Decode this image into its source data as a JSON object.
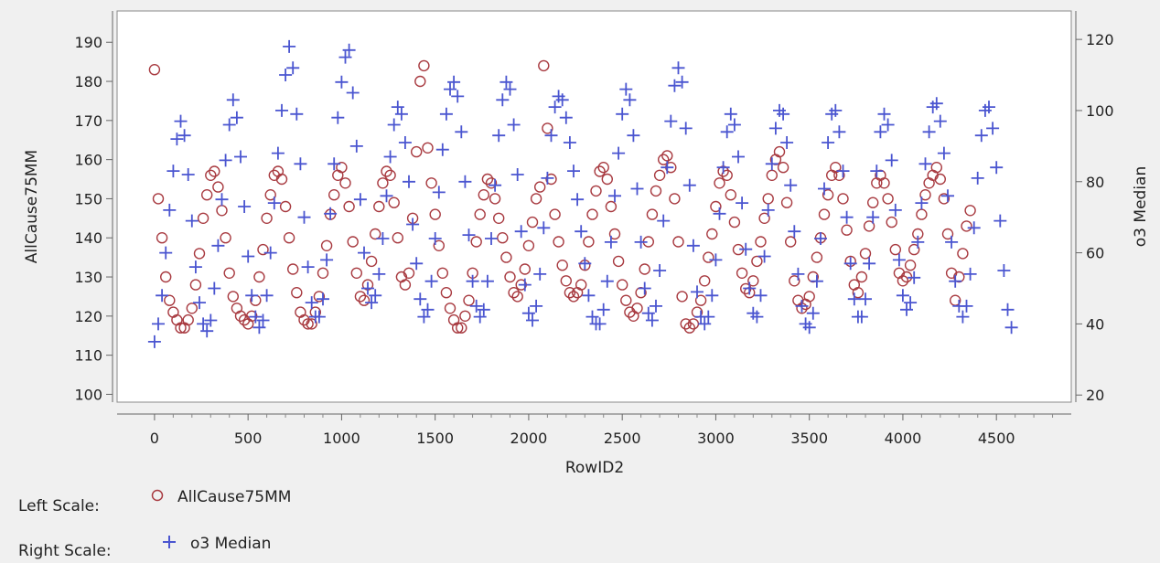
{
  "chart_data": {
    "type": "scatter",
    "xlabel": "RowID2",
    "ylabel_left": "AllCause75MM",
    "ylabel_right": "o3 Median",
    "x_range": [
      -200,
      4900
    ],
    "y_left_range": [
      98,
      198
    ],
    "y_right_range": [
      18,
      128
    ],
    "x_ticks": [
      0,
      500,
      1000,
      1500,
      2000,
      2500,
      3000,
      3500,
      4000,
      4500
    ],
    "y_left_ticks": [
      100,
      110,
      120,
      130,
      140,
      150,
      160,
      170,
      180,
      190
    ],
    "y_right_ticks": [
      20,
      40,
      60,
      80,
      100,
      120
    ],
    "grid": false,
    "series": [
      {
        "name": "AllCause75MM",
        "axis": "left",
        "marker": "circle-open",
        "color": "#a83a40",
        "x_start": 0,
        "x_step": 20,
        "values": [
          183,
          150,
          140,
          130,
          124,
          121,
          119,
          117,
          117,
          119,
          122,
          128,
          136,
          145,
          151,
          156,
          157,
          153,
          147,
          140,
          131,
          125,
          122,
          120,
          119,
          118,
          120,
          124,
          130,
          137,
          145,
          151,
          156,
          157,
          155,
          148,
          140,
          132,
          126,
          121,
          119,
          118,
          118,
          121,
          125,
          131,
          138,
          146,
          151,
          156,
          158,
          154,
          148,
          139,
          131,
          125,
          124,
          128,
          134,
          141,
          148,
          154,
          157,
          156,
          149,
          140,
          130,
          128,
          131,
          145,
          162,
          180,
          184,
          163,
          154,
          146,
          138,
          131,
          126,
          122,
          119,
          117,
          117,
          120,
          124,
          131,
          139,
          146,
          151,
          155,
          154,
          150,
          145,
          140,
          135,
          130,
          126,
          125,
          128,
          132,
          138,
          144,
          150,
          153,
          184,
          168,
          155,
          146,
          139,
          133,
          129,
          126,
          125,
          126,
          128,
          133,
          139,
          146,
          152,
          157,
          158,
          155,
          148,
          141,
          134,
          128,
          124,
          121,
          120,
          122,
          126,
          132,
          139,
          146,
          152,
          156,
          160,
          161,
          158,
          150,
          139,
          125,
          118,
          117,
          118,
          121,
          124,
          129,
          135,
          141,
          148,
          154,
          157,
          156,
          151,
          144,
          137,
          131,
          127,
          126,
          129,
          134,
          139,
          145,
          150,
          156,
          160,
          162,
          158,
          149,
          139,
          129,
          124,
          122,
          123,
          125,
          130,
          135,
          140,
          146,
          151,
          156,
          158,
          156,
          150,
          142,
          134,
          128,
          126,
          130,
          136,
          143,
          149,
          154,
          156,
          154,
          150,
          144,
          137,
          131,
          129,
          130,
          133,
          137,
          141,
          146,
          151,
          154,
          156,
          158,
          155,
          150,
          141,
          131,
          124,
          130,
          136,
          143,
          147
        ]
      },
      {
        "name": "o3 Median",
        "axis": "right",
        "marker": "plus",
        "color": "#4a55d0",
        "x_start": 0,
        "x_step": 20,
        "values": [
          35,
          40,
          48,
          60,
          72,
          83,
          92,
          97,
          93,
          82,
          69,
          56,
          46,
          40,
          38,
          41,
          50,
          62,
          75,
          86,
          96,
          103,
          98,
          87,
          73,
          59,
          48,
          42,
          39,
          41,
          48,
          60,
          74,
          88,
          100,
          110,
          118,
          112,
          99,
          85,
          70,
          56,
          46,
          42,
          42,
          47,
          58,
          71,
          85,
          98,
          108,
          115,
          117,
          105,
          90,
          75,
          60,
          50,
          46,
          48,
          54,
          64,
          76,
          87,
          96,
          101,
          99,
          91,
          80,
          68,
          57,
          47,
          42,
          44,
          52,
          64,
          77,
          89,
          99,
          106,
          108,
          104,
          94,
          80,
          65,
          52,
          45,
          42,
          44,
          52,
          64,
          79,
          93,
          103,
          108,
          106,
          96,
          82,
          66,
          51,
          43,
          41,
          45,
          54,
          67,
          81,
          93,
          101,
          104,
          103,
          98,
          91,
          83,
          75,
          66,
          57,
          48,
          42,
          40,
          40,
          44,
          52,
          63,
          76,
          88,
          99,
          106,
          103,
          93,
          78,
          63,
          50,
          43,
          41,
          45,
          55,
          69,
          84,
          97,
          107,
          112,
          108,
          95,
          79,
          62,
          49,
          42,
          40,
          42,
          48,
          58,
          71,
          84,
          94,
          99,
          96,
          87,
          74,
          61,
          50,
          43,
          42,
          48,
          59,
          72,
          85,
          95,
          100,
          99,
          91,
          79,
          66,
          54,
          45,
          40,
          39,
          43,
          52,
          64,
          78,
          91,
          99,
          100,
          94,
          83,
          70,
          57,
          47,
          42,
          42,
          47,
          57,
          70,
          83,
          94,
          99,
          96,
          86,
          72,
          58,
          48,
          44,
          46,
          53,
          63,
          74,
          85,
          94,
          101,
          102,
          97,
          88,
          76,
          63,
          52,
          45,
          42,
          45,
          54,
          67,
          81,
          93,
          100,
          101,
          95,
          84,
          69,
          55,
          44,
          39
        ]
      }
    ],
    "legend": {
      "left_label": "Left Scale:",
      "right_label": "Right Scale:",
      "left_series": "AllCause75MM",
      "right_series": "o3 Median",
      "placement": "bottom-left"
    }
  }
}
